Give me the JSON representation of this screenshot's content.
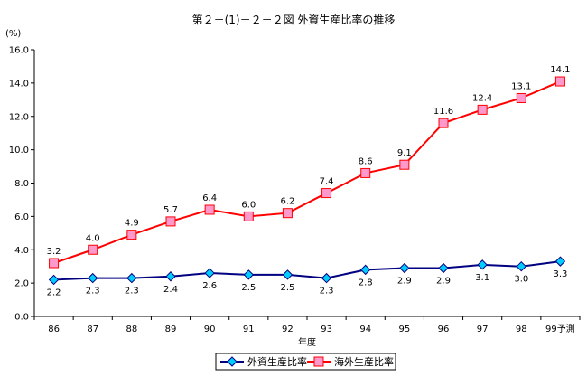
{
  "chart_data": {
    "type": "line",
    "title": "第２－(1)－２－２図 外資生産比率の推移",
    "ylabel": "(%)",
    "xlabel": "年度",
    "categories": [
      "86",
      "87",
      "88",
      "89",
      "90",
      "91",
      "92",
      "93",
      "94",
      "95",
      "96",
      "97",
      "98",
      "99予測"
    ],
    "ylim": [
      0,
      16
    ],
    "yticks": [
      "0.0",
      "2.0",
      "4.0",
      "6.0",
      "8.0",
      "10.0",
      "12.0",
      "14.0",
      "16.0"
    ],
    "grid": false,
    "legend_position": "bottom",
    "series": [
      {
        "name": "外資生産比率",
        "values": [
          2.2,
          2.3,
          2.3,
          2.4,
          2.6,
          2.5,
          2.5,
          2.3,
          2.8,
          2.9,
          2.9,
          3.1,
          3.0,
          3.3
        ],
        "labels": [
          "2.2",
          "2.3",
          "2.3",
          "2.4",
          "2.6",
          "2.5",
          "2.5",
          "2.3",
          "2.8",
          "2.9",
          "2.9",
          "3.1",
          "3.0",
          "3.3"
        ],
        "line_color": "#000080",
        "marker_color": "#00ccff",
        "marker": "diamond",
        "label_side": "below"
      },
      {
        "name": "海外生産比率",
        "values": [
          3.2,
          4.0,
          4.9,
          5.7,
          6.4,
          6.0,
          6.2,
          7.4,
          8.6,
          9.1,
          11.6,
          12.4,
          13.1,
          14.1
        ],
        "labels": [
          "3.2",
          "4.0",
          "4.9",
          "5.7",
          "6.4",
          "6.0",
          "6.2",
          "7.4",
          "8.6",
          "9.1",
          "11.6",
          "12.4",
          "13.1",
          "14.1"
        ],
        "line_color": "#ff0000",
        "marker_color": "#ff99cc",
        "marker": "square",
        "label_side": "above"
      }
    ]
  }
}
